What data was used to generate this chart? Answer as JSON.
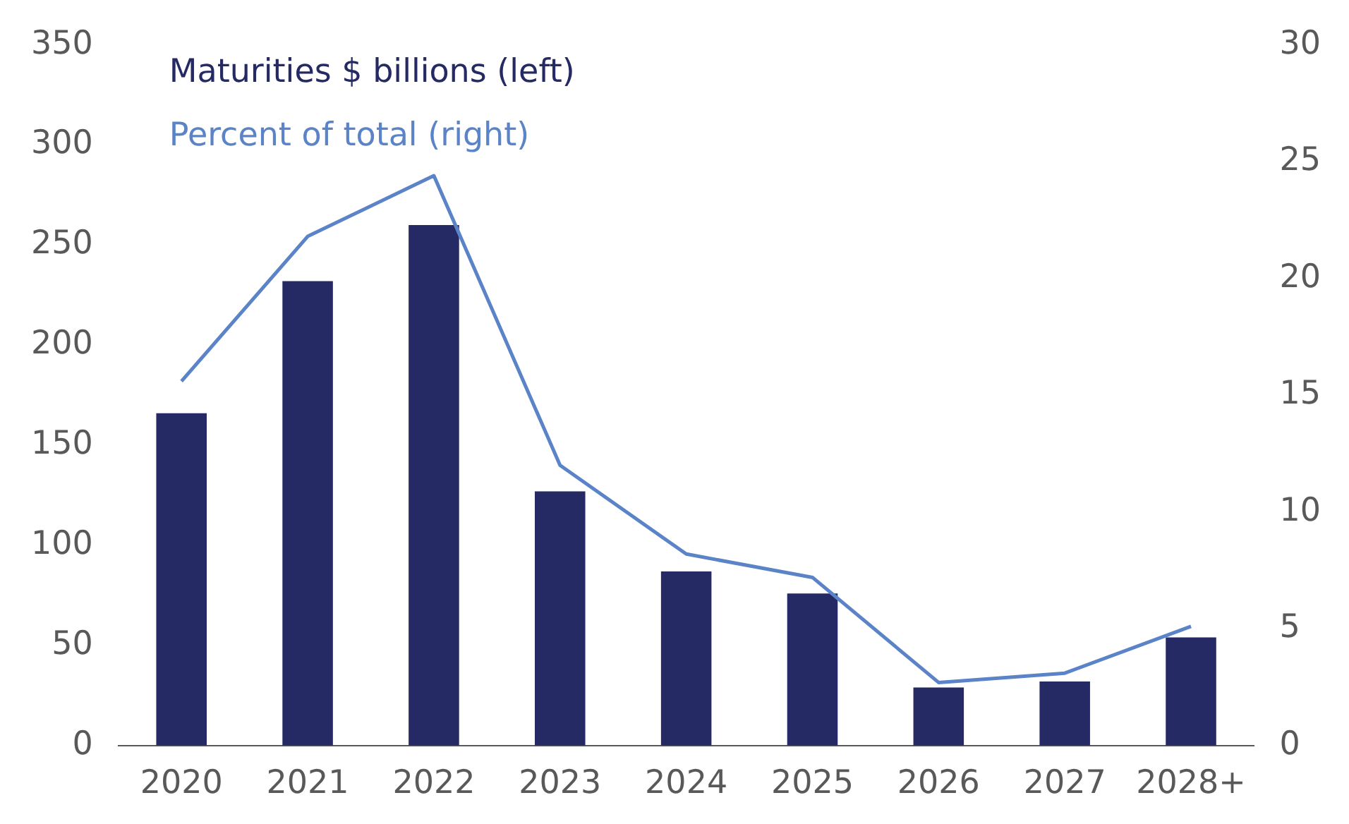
{
  "chart_data": {
    "type": "bar",
    "categories": [
      "2020",
      "2021",
      "2022",
      "2023",
      "2024",
      "2025",
      "2026",
      "2027",
      "2028+"
    ],
    "series": [
      {
        "name": "Maturities $ billions (left)",
        "color": "#252a64",
        "values": [
          166,
          232,
          260,
          127,
          87,
          76,
          29,
          32,
          54
        ]
      },
      {
        "name": "Percent of total (right)",
        "type": "line",
        "axis": "y2",
        "color": "#5b83c7",
        "values": [
          15.6,
          21.8,
          24.4,
          12.0,
          8.2,
          7.2,
          2.7,
          3.1,
          5.1
        ]
      }
    ],
    "ylim": [
      0,
      350
    ],
    "yticks": [
      0,
      50,
      100,
      150,
      200,
      250,
      300,
      350
    ],
    "y2lim": [
      0,
      30
    ],
    "y2ticks": [
      0,
      5,
      10,
      15,
      20,
      25,
      30
    ],
    "grid": false,
    "legend": "top left",
    "marker": "none",
    "line_style": "solid"
  }
}
